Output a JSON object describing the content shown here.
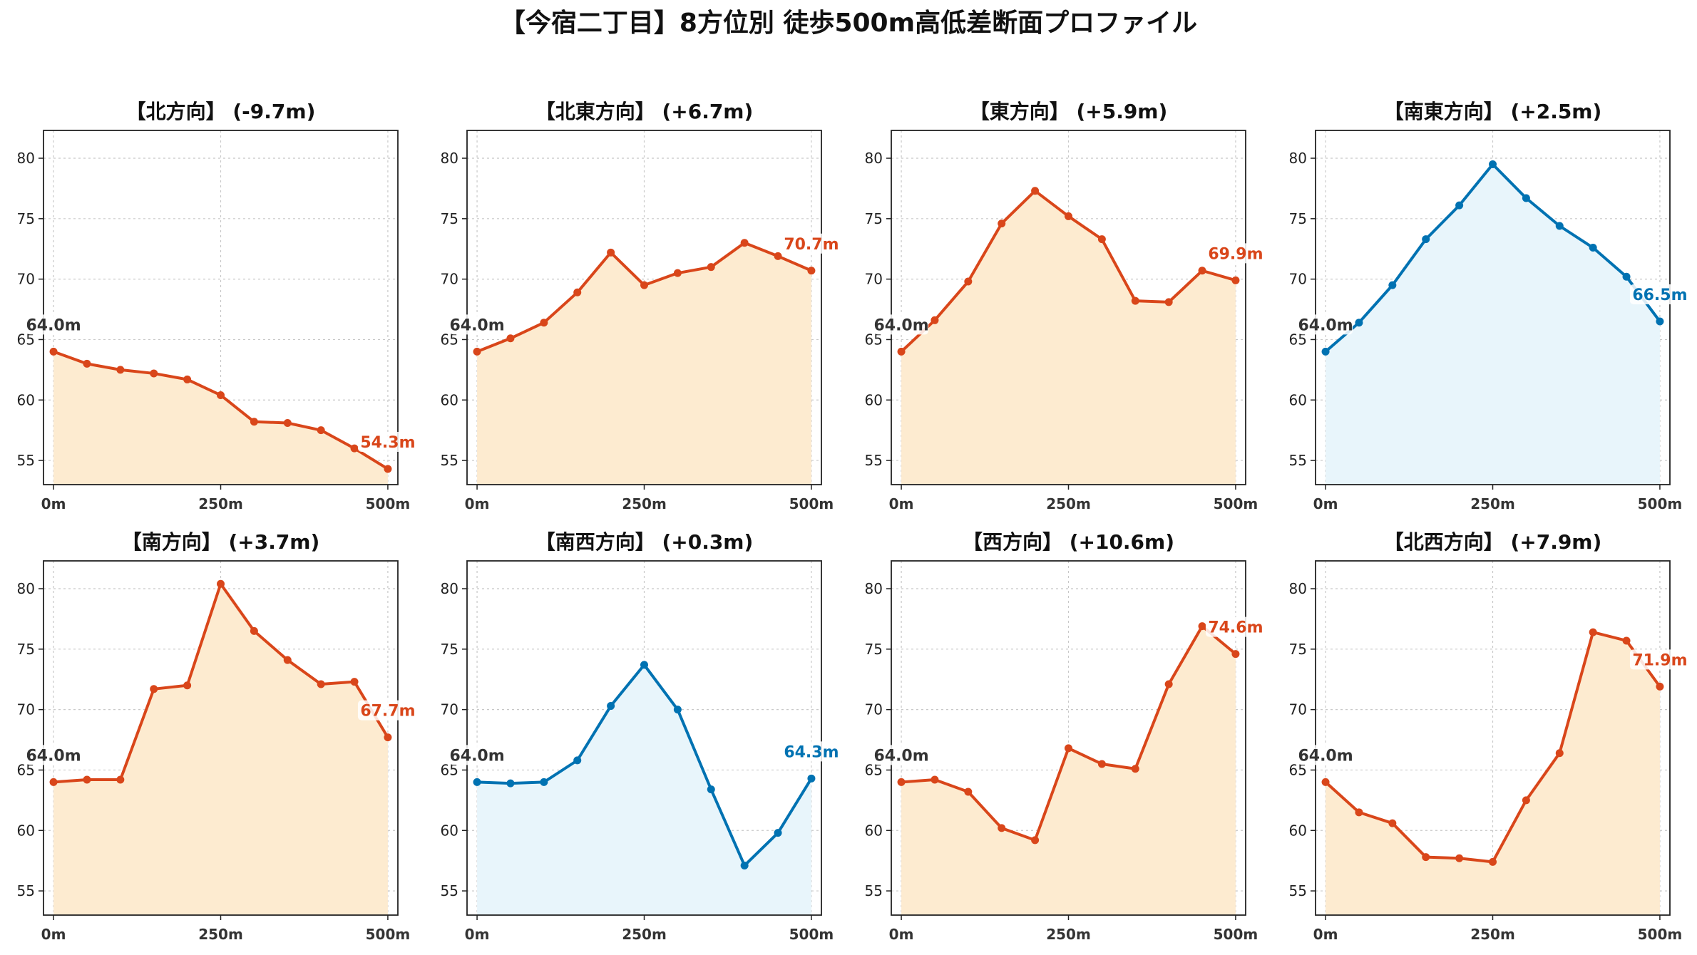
{
  "title": "【今宿二丁目】8方位別 徒歩500m高低差断面プロファイル",
  "colors": {
    "rise_line": "#d9461a",
    "rise_fill": "#fdebd0",
    "fall_line": "#0072b2",
    "fall_fill": "#e8f5fb",
    "start_label": "#333333"
  },
  "chart_data": [
    {
      "type": "area",
      "title": "【北方向】 (-9.7m)",
      "x": [
        0,
        50,
        100,
        150,
        200,
        250,
        300,
        350,
        400,
        450,
        500
      ],
      "values": [
        64.0,
        63.0,
        62.5,
        62.2,
        61.7,
        60.4,
        58.2,
        58.1,
        57.5,
        56.0,
        54.3
      ],
      "start_label": "64.0m",
      "end_label": "54.3m",
      "color": "orange",
      "xticks": [
        "0m",
        "250m",
        "500m"
      ],
      "yticks": [
        "55",
        "60",
        "65",
        "70",
        "75",
        "80"
      ],
      "ylim": [
        53,
        82.3
      ],
      "xlim": [
        -15,
        515
      ],
      "grid": true
    },
    {
      "type": "area",
      "title": "【北東方向】 (+6.7m)",
      "x": [
        0,
        50,
        100,
        150,
        200,
        250,
        300,
        350,
        400,
        450,
        500
      ],
      "values": [
        64.0,
        65.1,
        66.4,
        68.9,
        72.2,
        69.5,
        70.5,
        71.0,
        73.0,
        71.9,
        70.7
      ],
      "start_label": "64.0m",
      "end_label": "70.7m",
      "color": "orange",
      "xticks": [
        "0m",
        "250m",
        "500m"
      ],
      "yticks": [
        "55",
        "60",
        "65",
        "70",
        "75",
        "80"
      ],
      "ylim": [
        53,
        82.3
      ],
      "xlim": [
        -15,
        515
      ],
      "grid": true
    },
    {
      "type": "area",
      "title": "【東方向】 (+5.9m)",
      "x": [
        0,
        50,
        100,
        150,
        200,
        250,
        300,
        350,
        400,
        450,
        500
      ],
      "values": [
        64.0,
        66.6,
        69.8,
        74.6,
        77.3,
        75.2,
        73.3,
        68.2,
        68.1,
        70.7,
        69.9
      ],
      "start_label": "64.0m",
      "end_label": "69.9m",
      "color": "orange",
      "xticks": [
        "0m",
        "250m",
        "500m"
      ],
      "yticks": [
        "55",
        "60",
        "65",
        "70",
        "75",
        "80"
      ],
      "ylim": [
        53,
        82.3
      ],
      "xlim": [
        -15,
        515
      ],
      "grid": true
    },
    {
      "type": "area",
      "title": "【南東方向】 (+2.5m)",
      "x": [
        0,
        50,
        100,
        150,
        200,
        250,
        300,
        350,
        400,
        450,
        500
      ],
      "values": [
        64.0,
        66.4,
        69.5,
        73.3,
        76.1,
        79.5,
        76.7,
        74.4,
        72.6,
        70.2,
        66.5
      ],
      "start_label": "64.0m",
      "end_label": "66.5m",
      "color": "blue",
      "xticks": [
        "0m",
        "250m",
        "500m"
      ],
      "yticks": [
        "55",
        "60",
        "65",
        "70",
        "75",
        "80"
      ],
      "ylim": [
        53,
        82.3
      ],
      "xlim": [
        -15,
        515
      ],
      "grid": true
    },
    {
      "type": "area",
      "title": "【南方向】 (+3.7m)",
      "x": [
        0,
        50,
        100,
        150,
        200,
        250,
        300,
        350,
        400,
        450,
        500
      ],
      "values": [
        64.0,
        64.2,
        64.2,
        71.7,
        72.0,
        80.4,
        76.5,
        74.1,
        72.1,
        72.3,
        67.7
      ],
      "start_label": "64.0m",
      "end_label": "67.7m",
      "color": "orange",
      "xticks": [
        "0m",
        "250m",
        "500m"
      ],
      "yticks": [
        "55",
        "60",
        "65",
        "70",
        "75",
        "80"
      ],
      "ylim": [
        53,
        82.3
      ],
      "xlim": [
        -15,
        515
      ],
      "grid": true
    },
    {
      "type": "area",
      "title": "【南西方向】 (+0.3m)",
      "x": [
        0,
        50,
        100,
        150,
        200,
        250,
        300,
        350,
        400,
        450,
        500
      ],
      "values": [
        64.0,
        63.9,
        64.0,
        65.8,
        70.3,
        73.7,
        70.0,
        63.4,
        57.1,
        59.8,
        64.3
      ],
      "start_label": "64.0m",
      "end_label": "64.3m",
      "color": "blue",
      "xticks": [
        "0m",
        "250m",
        "500m"
      ],
      "yticks": [
        "55",
        "60",
        "65",
        "70",
        "75",
        "80"
      ],
      "ylim": [
        53,
        82.3
      ],
      "xlim": [
        -15,
        515
      ],
      "grid": true
    },
    {
      "type": "area",
      "title": "【西方向】 (+10.6m)",
      "x": [
        0,
        50,
        100,
        150,
        200,
        250,
        300,
        350,
        400,
        450,
        500
      ],
      "values": [
        64.0,
        64.2,
        63.2,
        60.2,
        59.2,
        66.8,
        65.5,
        65.1,
        72.1,
        76.9,
        74.6
      ],
      "start_label": "64.0m",
      "end_label": "74.6m",
      "color": "orange",
      "xticks": [
        "0m",
        "250m",
        "500m"
      ],
      "yticks": [
        "55",
        "60",
        "65",
        "70",
        "75",
        "80"
      ],
      "ylim": [
        53,
        82.3
      ],
      "xlim": [
        -15,
        515
      ],
      "grid": true
    },
    {
      "type": "area",
      "title": "【北西方向】 (+7.9m)",
      "x": [
        0,
        50,
        100,
        150,
        200,
        250,
        300,
        350,
        400,
        450,
        500
      ],
      "values": [
        64.0,
        61.5,
        60.6,
        57.8,
        57.7,
        57.4,
        62.5,
        66.4,
        76.4,
        75.7,
        71.9
      ],
      "start_label": "64.0m",
      "end_label": "71.9m",
      "color": "orange",
      "xticks": [
        "0m",
        "250m",
        "500m"
      ],
      "yticks": [
        "55",
        "60",
        "65",
        "70",
        "75",
        "80"
      ],
      "ylim": [
        53,
        82.3
      ],
      "xlim": [
        -15,
        515
      ],
      "grid": true
    }
  ]
}
